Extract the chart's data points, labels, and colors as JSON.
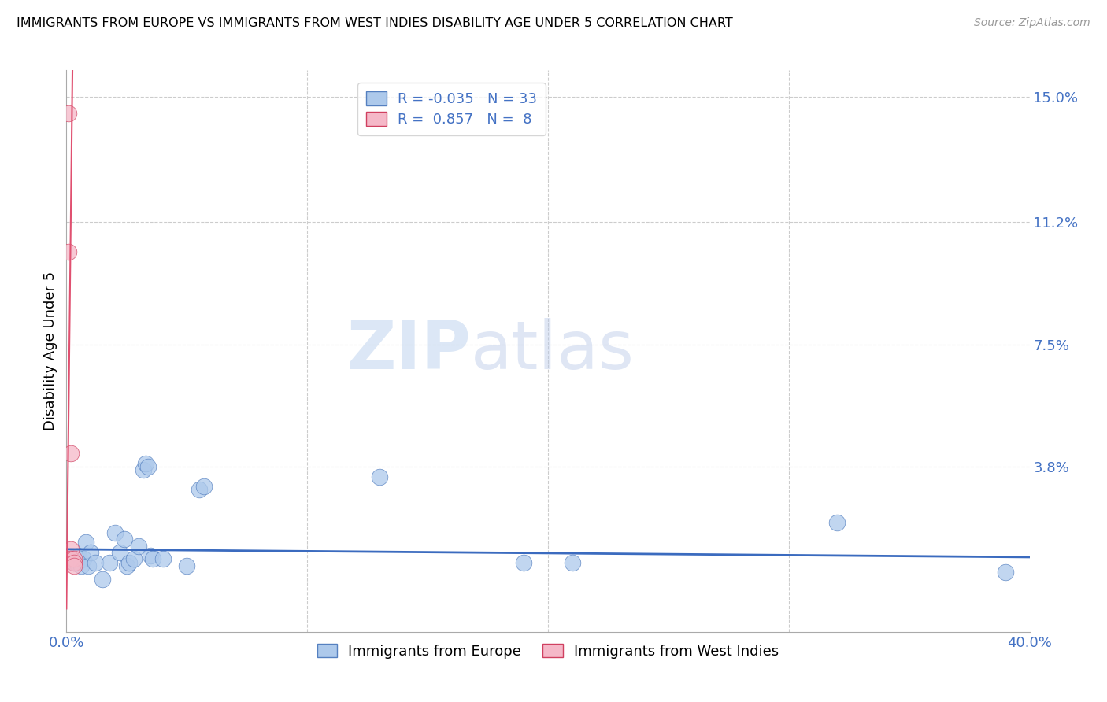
{
  "title": "IMMIGRANTS FROM EUROPE VS IMMIGRANTS FROM WEST INDIES DISABILITY AGE UNDER 5 CORRELATION CHART",
  "source": "Source: ZipAtlas.com",
  "ylabel": "Disability Age Under 5",
  "xlim": [
    0.0,
    0.4
  ],
  "ylim": [
    -0.012,
    0.158
  ],
  "yticks": [
    0.0,
    0.038,
    0.075,
    0.112,
    0.15
  ],
  "ytick_labels": [
    "",
    "3.8%",
    "7.5%",
    "11.2%",
    "15.0%"
  ],
  "xticks": [
    0.0,
    0.1,
    0.2,
    0.3,
    0.4
  ],
  "xtick_labels": [
    "0.0%",
    "",
    "",
    "",
    "40.0%"
  ],
  "blue_R": -0.035,
  "blue_N": 33,
  "pink_R": 0.857,
  "pink_N": 8,
  "blue_color": "#adc9eb",
  "pink_color": "#f5b8c8",
  "blue_line_color": "#3b6bbf",
  "pink_line_color": "#e05070",
  "blue_edge_color": "#5580c0",
  "pink_edge_color": "#d04060",
  "blue_scatter": [
    [
      0.002,
      0.01
    ],
    [
      0.003,
      0.009
    ],
    [
      0.004,
      0.009
    ],
    [
      0.005,
      0.011
    ],
    [
      0.006,
      0.008
    ],
    [
      0.007,
      0.01
    ],
    [
      0.008,
      0.015
    ],
    [
      0.009,
      0.008
    ],
    [
      0.01,
      0.012
    ],
    [
      0.012,
      0.009
    ],
    [
      0.015,
      0.004
    ],
    [
      0.018,
      0.009
    ],
    [
      0.02,
      0.018
    ],
    [
      0.022,
      0.012
    ],
    [
      0.024,
      0.016
    ],
    [
      0.025,
      0.008
    ],
    [
      0.026,
      0.009
    ],
    [
      0.028,
      0.01
    ],
    [
      0.03,
      0.014
    ],
    [
      0.032,
      0.037
    ],
    [
      0.033,
      0.039
    ],
    [
      0.034,
      0.038
    ],
    [
      0.035,
      0.011
    ],
    [
      0.036,
      0.01
    ],
    [
      0.04,
      0.01
    ],
    [
      0.05,
      0.008
    ],
    [
      0.055,
      0.031
    ],
    [
      0.057,
      0.032
    ],
    [
      0.13,
      0.035
    ],
    [
      0.19,
      0.009
    ],
    [
      0.21,
      0.009
    ],
    [
      0.32,
      0.021
    ],
    [
      0.39,
      0.006
    ]
  ],
  "pink_scatter": [
    [
      0.001,
      0.145
    ],
    [
      0.001,
      0.103
    ],
    [
      0.002,
      0.042
    ],
    [
      0.002,
      0.013
    ],
    [
      0.002,
      0.01
    ],
    [
      0.003,
      0.01
    ],
    [
      0.003,
      0.009
    ],
    [
      0.003,
      0.008
    ]
  ],
  "blue_reg_slope": -0.006,
  "blue_reg_intercept": 0.013,
  "pink_reg_slope": 65.0,
  "pink_reg_intercept": -0.005,
  "watermark_zip": "ZIP",
  "watermark_atlas": "atlas",
  "legend_label_blue": "Immigrants from Europe",
  "legend_label_pink": "Immigrants from West Indies"
}
